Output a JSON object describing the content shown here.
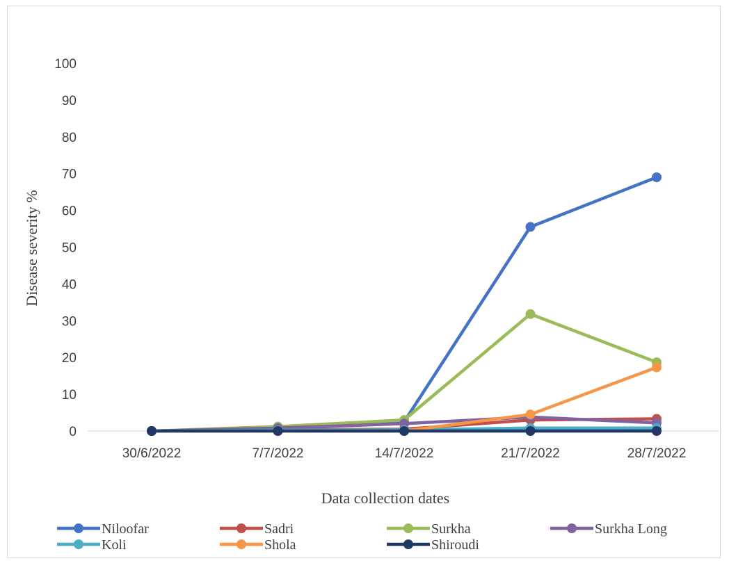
{
  "chart_data": {
    "type": "line",
    "title": "",
    "xlabel": "Data collection dates",
    "ylabel": "Disease severity %",
    "ylim": [
      0,
      100
    ],
    "yticks": [
      0,
      10,
      20,
      30,
      40,
      50,
      60,
      70,
      80,
      90,
      100
    ],
    "categories": [
      "30/6/2022",
      "7/7/2022",
      "14/7/2022",
      "21/7/2022",
      "28/7/2022"
    ],
    "grid": false,
    "legend_position": "bottom",
    "series": [
      {
        "name": "Niloofar",
        "color": "#4472C4",
        "values": [
          0,
          0.5,
          2.5,
          55.5,
          69
        ]
      },
      {
        "name": "Sadri",
        "color": "#C0504D",
        "values": [
          0,
          0.3,
          0.5,
          3,
          3.3
        ]
      },
      {
        "name": "Surkha",
        "color": "#9BBB59",
        "values": [
          0,
          1.2,
          3,
          31.8,
          18.7
        ]
      },
      {
        "name": "Surkha Long",
        "color": "#8064A2",
        "values": [
          0,
          0.8,
          2,
          3.8,
          2.2
        ]
      },
      {
        "name": "Koli",
        "color": "#4BACC6",
        "values": [
          0,
          0.2,
          0.3,
          0.8,
          0.8
        ]
      },
      {
        "name": "Shola",
        "color": "#F79646",
        "values": [
          0,
          0,
          0,
          4.5,
          17.3
        ]
      },
      {
        "name": "Shiroudi",
        "color": "#1F3864",
        "values": [
          0,
          0,
          0,
          0,
          0
        ]
      }
    ]
  }
}
